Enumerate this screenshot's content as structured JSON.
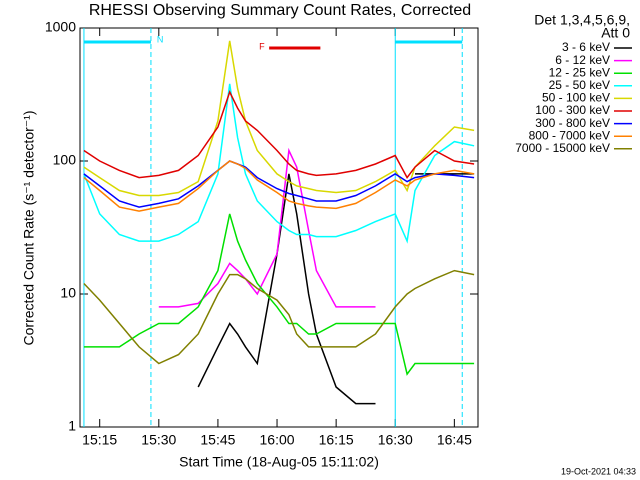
{
  "chart_data": {
    "type": "line",
    "title": "RHESSI Observing Summary Count Rates, Corrected",
    "ylabel": "Corrected Count Rate (s⁻¹ detector⁻¹)",
    "xlabel": "Start Time (18-Aug-05 15:11:02)",
    "legend_title": [
      "Det 1,3,4,5,6,9,",
      "Att 0"
    ],
    "footer": "19-Oct-2021 04:33",
    "log_y": true,
    "ylim": [
      1,
      1000
    ],
    "yticks": [
      1,
      10,
      100,
      1000
    ],
    "xlim": [
      "15:10",
      "16:51"
    ],
    "xticks": [
      "15:15",
      "15:30",
      "15:45",
      "16:00",
      "16:15",
      "16:30",
      "16:45"
    ],
    "night": [
      [
        "15:11",
        "15:28"
      ],
      [
        "16:30",
        "16:47"
      ]
    ],
    "night_label": "N",
    "night_color": "#00e0ff",
    "flare": [
      "15:58",
      "16:11"
    ],
    "flare_label": "F",
    "flare_color": "#e00000",
    "x": [
      "15:11",
      "15:15",
      "15:20",
      "15:25",
      "15:30",
      "15:35",
      "15:40",
      "15:45",
      "15:48",
      "15:50",
      "15:52",
      "15:55",
      "16:00",
      "16:03",
      "16:05",
      "16:08",
      "16:10",
      "16:15",
      "16:20",
      "16:25",
      "16:30",
      "16:33",
      "16:35",
      "16:40",
      "16:45",
      "16:50"
    ],
    "series": [
      {
        "name": "3 - 6 keV",
        "color": "#000000",
        "values": [
          null,
          null,
          null,
          null,
          null,
          null,
          2,
          4,
          6,
          5,
          4,
          3,
          20,
          80,
          40,
          10,
          5,
          2,
          1.5,
          1.5,
          null,
          null,
          80,
          80,
          80,
          80
        ]
      },
      {
        "name": "6 - 12 keV",
        "color": "#ff00ff",
        "values": [
          null,
          null,
          null,
          null,
          8,
          8,
          8.5,
          12,
          17,
          15,
          13,
          10,
          20,
          120,
          90,
          30,
          15,
          8,
          8,
          8,
          null,
          null,
          null,
          null,
          null,
          null
        ]
      },
      {
        "name": "12 - 25 keV",
        "color": "#00e000",
        "values": [
          4,
          4,
          4,
          5,
          6,
          6,
          8,
          15,
          40,
          25,
          18,
          12,
          8,
          6,
          6,
          5,
          5,
          6,
          6,
          6,
          6,
          2.5,
          3,
          3,
          3,
          3
        ]
      },
      {
        "name": "25 - 50 keV",
        "color": "#00ffff",
        "values": [
          80,
          40,
          28,
          25,
          25,
          28,
          35,
          80,
          380,
          150,
          80,
          50,
          35,
          30,
          28,
          28,
          27,
          27,
          30,
          35,
          40,
          25,
          60,
          110,
          140,
          130
        ]
      },
      {
        "name": "50 - 100 keV",
        "color": "#d8d800",
        "values": [
          90,
          75,
          60,
          55,
          55,
          58,
          70,
          200,
          800,
          350,
          200,
          120,
          80,
          70,
          65,
          62,
          60,
          58,
          60,
          70,
          85,
          60,
          90,
          130,
          180,
          170
        ]
      },
      {
        "name": "100 - 300 keV",
        "color": "#e00000",
        "values": [
          120,
          100,
          85,
          75,
          78,
          85,
          110,
          180,
          330,
          250,
          200,
          170,
          120,
          95,
          85,
          80,
          78,
          80,
          85,
          95,
          110,
          75,
          90,
          120,
          100,
          95
        ]
      },
      {
        "name": "300 - 800 keV",
        "color": "#0000ff",
        "values": [
          80,
          65,
          50,
          45,
          48,
          52,
          65,
          85,
          100,
          95,
          90,
          75,
          62,
          57,
          55,
          52,
          50,
          50,
          55,
          65,
          80,
          70,
          75,
          80,
          78,
          75
        ]
      },
      {
        "name": "800 - 7000 keV",
        "color": "#ff8000",
        "values": [
          75,
          60,
          45,
          42,
          45,
          48,
          62,
          85,
          100,
          95,
          88,
          72,
          58,
          50,
          48,
          46,
          45,
          44,
          48,
          58,
          72,
          65,
          72,
          80,
          85,
          80
        ]
      },
      {
        "name": "7000 - 15000 keV",
        "color": "#808000",
        "values": [
          12,
          9,
          6,
          4,
          3,
          3.5,
          5,
          10,
          14,
          14,
          13,
          11,
          9,
          7,
          5,
          4,
          4,
          4,
          4,
          5,
          8,
          10,
          11,
          13,
          15,
          14
        ]
      }
    ]
  }
}
